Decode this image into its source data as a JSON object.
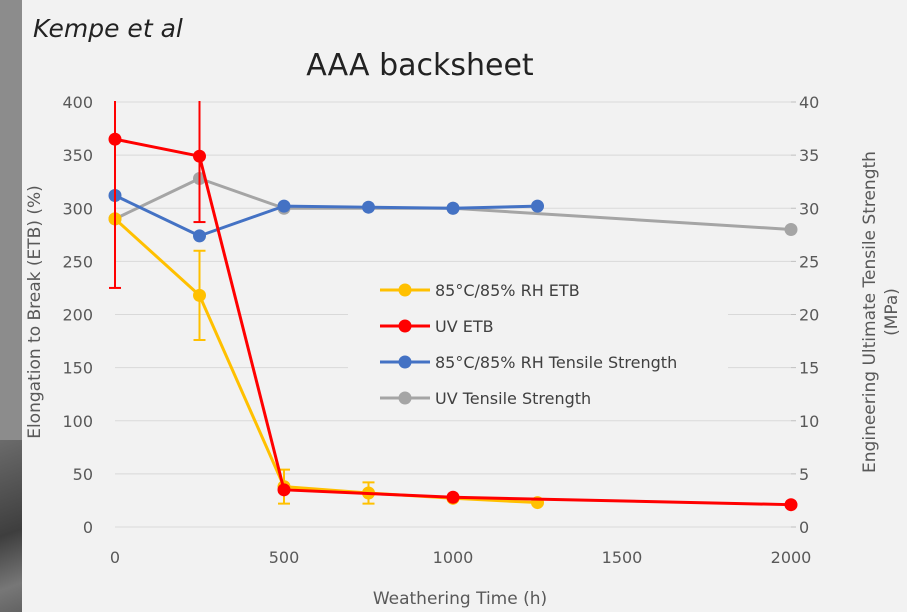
{
  "annotation": "Kempe et al",
  "chart_data": {
    "type": "line",
    "title": "AAA backsheet",
    "xlabel": "Weathering Time (h)",
    "ylabel": "Elongation to Break (ETB) (%)",
    "y2label_line1": "Engineering Ultimate Tensile Strength",
    "y2label_line2": "(MPa)",
    "xlim": [
      0,
      2000
    ],
    "ylim": [
      0,
      400
    ],
    "y2lim": [
      0,
      40
    ],
    "x_ticks": [
      "0",
      "500",
      "1000",
      "1500",
      "2000"
    ],
    "y_ticks": [
      "0",
      "50",
      "100",
      "150",
      "200",
      "250",
      "300",
      "350",
      "400"
    ],
    "y2_ticks": [
      "0",
      "5",
      "10",
      "15",
      "20",
      "25",
      "30",
      "35",
      "40"
    ],
    "grid": "horizontal",
    "legend_position": "center-right",
    "series": [
      {
        "name": "85°C/85% RH ETB",
        "axis": "left",
        "color": "#FFC000",
        "x": [
          0,
          250,
          500,
          750,
          1000,
          1250
        ],
        "y": [
          290,
          218,
          38,
          32,
          27,
          23
        ],
        "err": [
          0,
          42,
          16,
          10,
          0,
          0
        ]
      },
      {
        "name": "UV ETB",
        "axis": "left",
        "color": "#FF0000",
        "x": [
          0,
          250,
          500,
          1000,
          2000
        ],
        "y": [
          365,
          349,
          35,
          28,
          21
        ],
        "err": [
          140,
          62,
          0,
          0,
          0
        ]
      },
      {
        "name": "85°C/85% RH Tensile Strength",
        "axis": "right",
        "color": "#4472C4",
        "x": [
          0,
          250,
          500,
          750,
          1000,
          1250
        ],
        "y": [
          31.2,
          27.4,
          30.2,
          30.1,
          30.0,
          30.2
        ],
        "err": [
          0,
          0,
          0,
          0,
          0,
          0
        ]
      },
      {
        "name": "UV Tensile Strength",
        "axis": "right",
        "color": "#A5A5A5",
        "x": [
          0,
          250,
          500,
          1000,
          2000
        ],
        "y": [
          29.0,
          32.8,
          30.0,
          30.0,
          28.0
        ],
        "err": [
          0,
          0,
          0,
          0,
          0
        ]
      }
    ]
  }
}
